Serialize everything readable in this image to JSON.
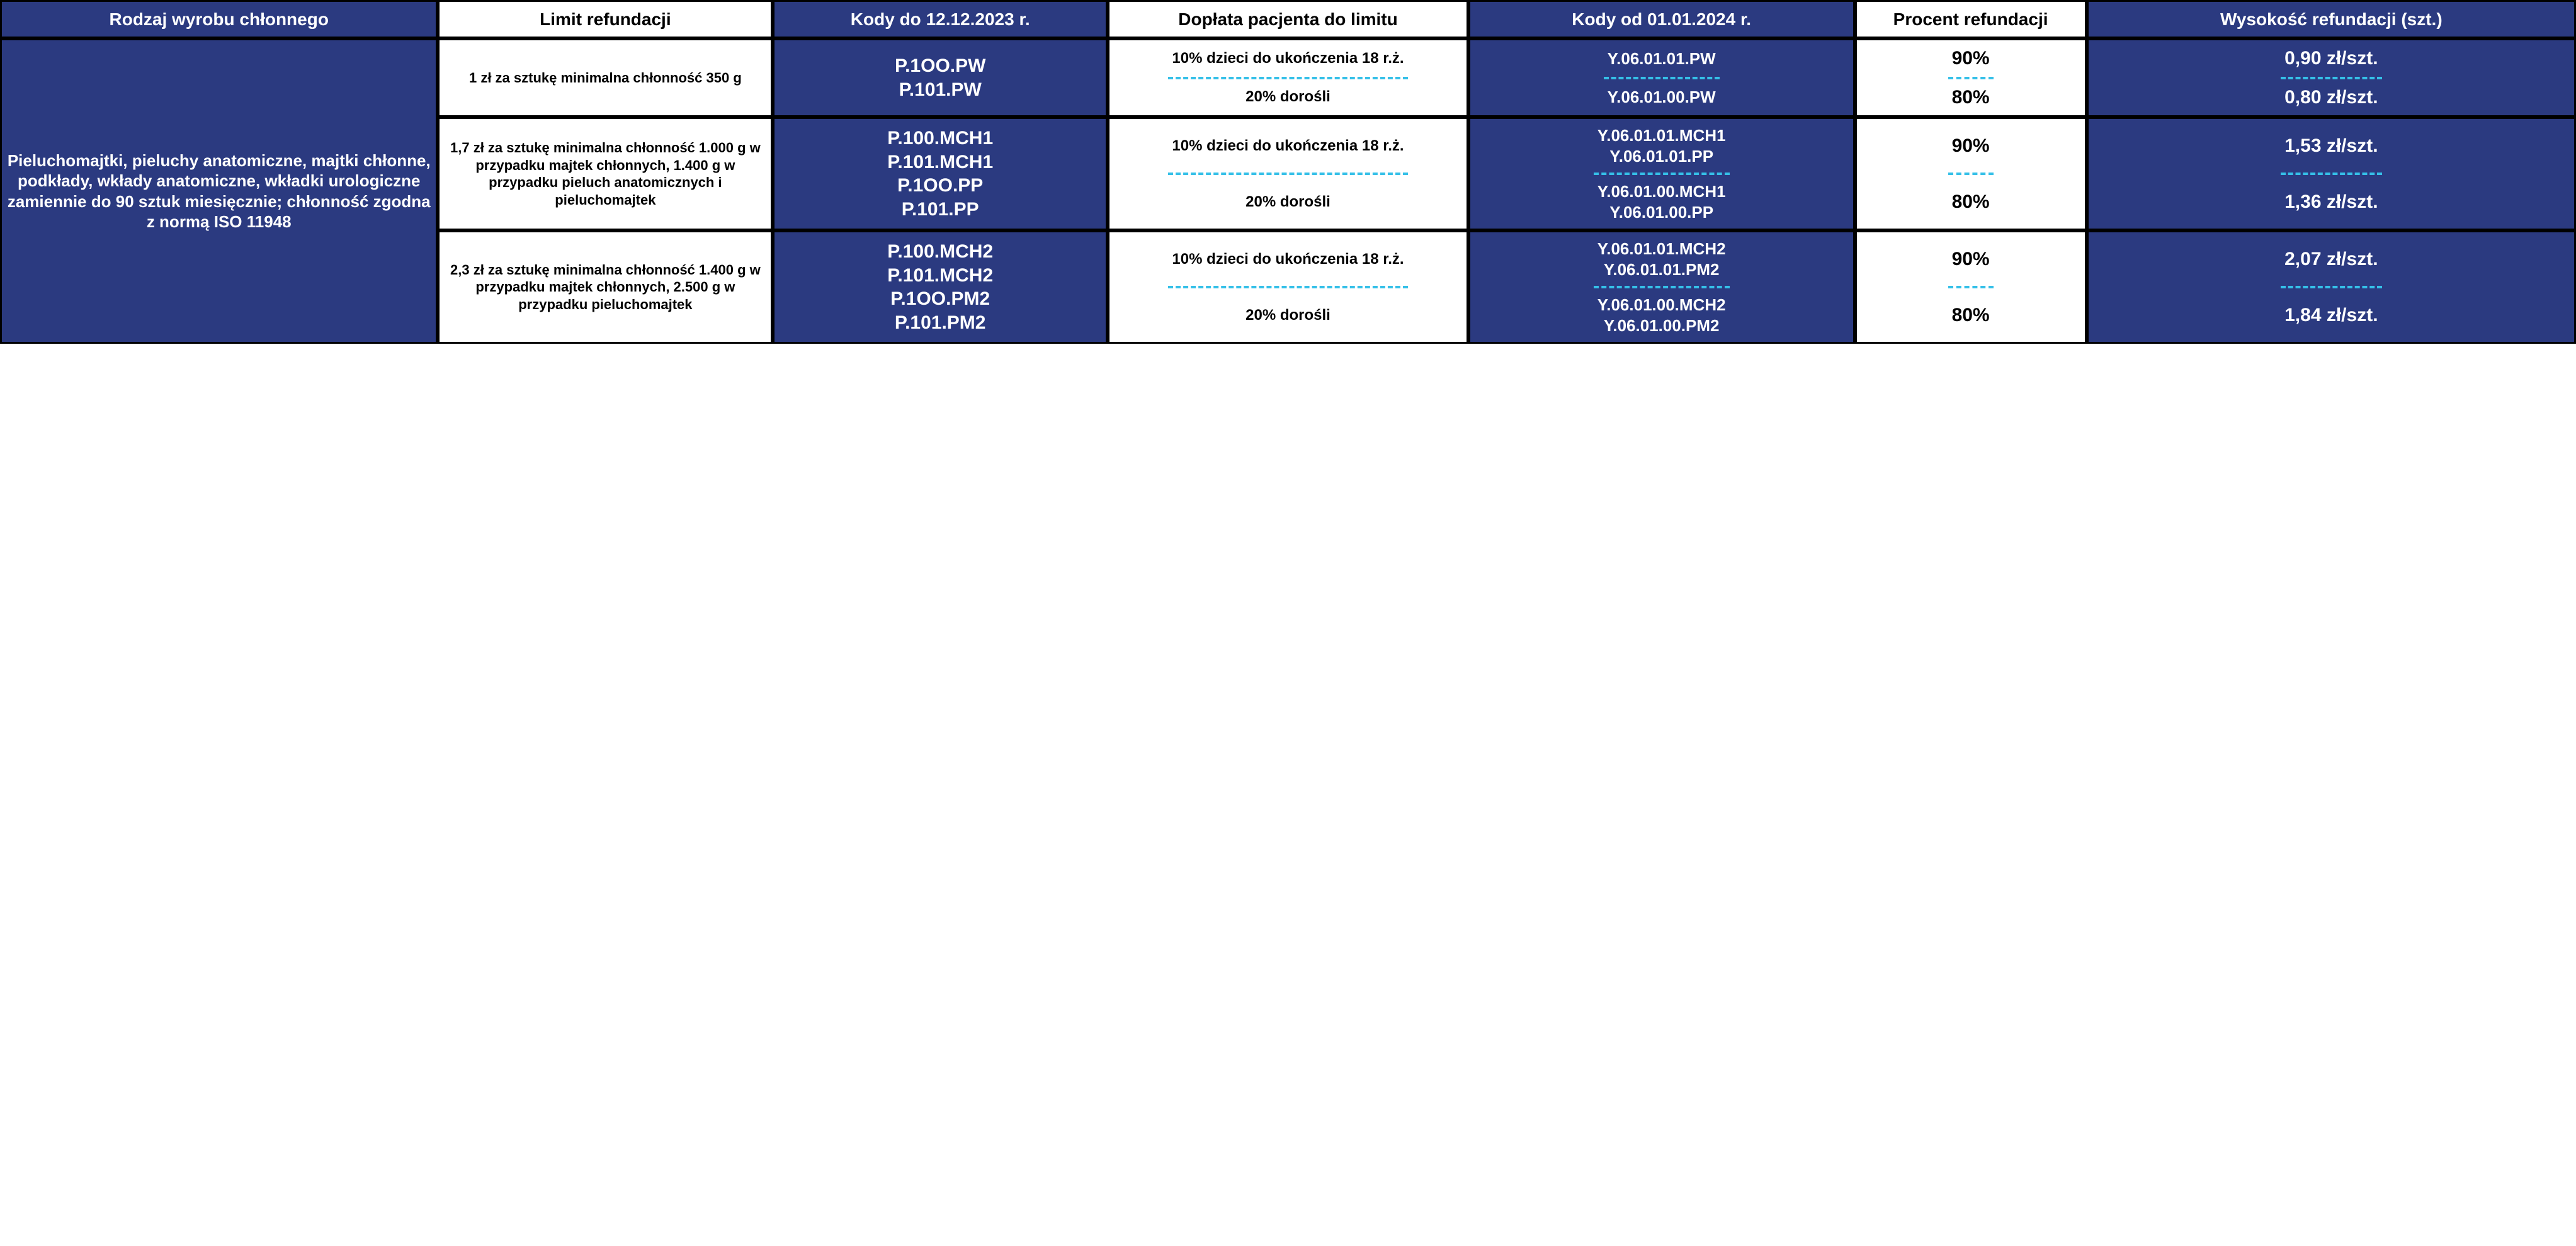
{
  "colors": {
    "blue": "#2b3a80",
    "dashed": "#35c0e8",
    "border": "#000000",
    "white": "#ffffff",
    "black": "#000000"
  },
  "headers": {
    "product_type": "Rodzaj wyrobu chłonnego",
    "refund_limit": "Limit refundacji",
    "codes_until": "Kody do 12.12.2023 r.",
    "patient_surcharge": "Dopłata pacjenta do limitu",
    "codes_from": "Kody od 01.01.2024 r.",
    "refund_percent": "Procent refundacji",
    "refund_amount": "Wysokość refundacji (szt.)"
  },
  "product_type": "Pieluchomajtki, pieluchy anatomiczne, majtki chłonne, podkłady, wkłady anatomiczne, wkładki urologiczne zamiennie do 90 sztuk miesięcznie; chłonność zgodna z normą ISO 11948",
  "rows": [
    {
      "limit": "1 zł za sztukę minimalna chłonność 350 g",
      "codes_old": [
        "P.1OO.PW",
        "P.101.PW"
      ],
      "sub": [
        {
          "surcharge": "10% dzieci do ukończenia 18 r.ż.",
          "codes_new": [
            "Y.06.01.01.PW"
          ],
          "percent": "90%",
          "amount": "0,90 zł/szt."
        },
        {
          "surcharge": "20% dorośli",
          "codes_new": [
            "Y.06.01.00.PW"
          ],
          "percent": "80%",
          "amount": "0,80 zł/szt."
        }
      ]
    },
    {
      "limit": "1,7 zł za sztukę minimalna chłonność 1.000 g w przypadku majtek chłonnych, 1.400 g w przypadku pieluch anatomicznych i pieluchomajtek",
      "codes_old": [
        "P.100.MCH1",
        "P.101.MCH1",
        "P.1OO.PP",
        "P.101.PP"
      ],
      "sub": [
        {
          "surcharge": "10% dzieci do ukończenia 18 r.ż.",
          "codes_new": [
            "Y.06.01.01.MCH1",
            "Y.06.01.01.PP"
          ],
          "percent": "90%",
          "amount": "1,53 zł/szt."
        },
        {
          "surcharge": "20% dorośli",
          "codes_new": [
            "Y.06.01.00.MCH1",
            "Y.06.01.00.PP"
          ],
          "percent": "80%",
          "amount": "1,36 zł/szt."
        }
      ]
    },
    {
      "limit": "2,3 zł za sztukę minimalna chłonność 1.400 g w przypadku majtek chłonnych, 2.500 g w przypadku pieluchomajtek",
      "codes_old": [
        "P.100.MCH2",
        "P.101.MCH2",
        "P.1OO.PM2",
        "P.101.PM2"
      ],
      "sub": [
        {
          "surcharge": "10% dzieci do ukończenia 18 r.ż.",
          "codes_new": [
            "Y.06.01.01.MCH2",
            "Y.06.01.01.PM2"
          ],
          "percent": "90%",
          "amount": "2,07 zł/szt."
        },
        {
          "surcharge": "20% dorośli",
          "codes_new": [
            "Y.06.01.00.MCH2",
            "Y.06.01.00.PM2"
          ],
          "percent": "80%",
          "amount": "1,84 zł/szt."
        }
      ]
    }
  ]
}
